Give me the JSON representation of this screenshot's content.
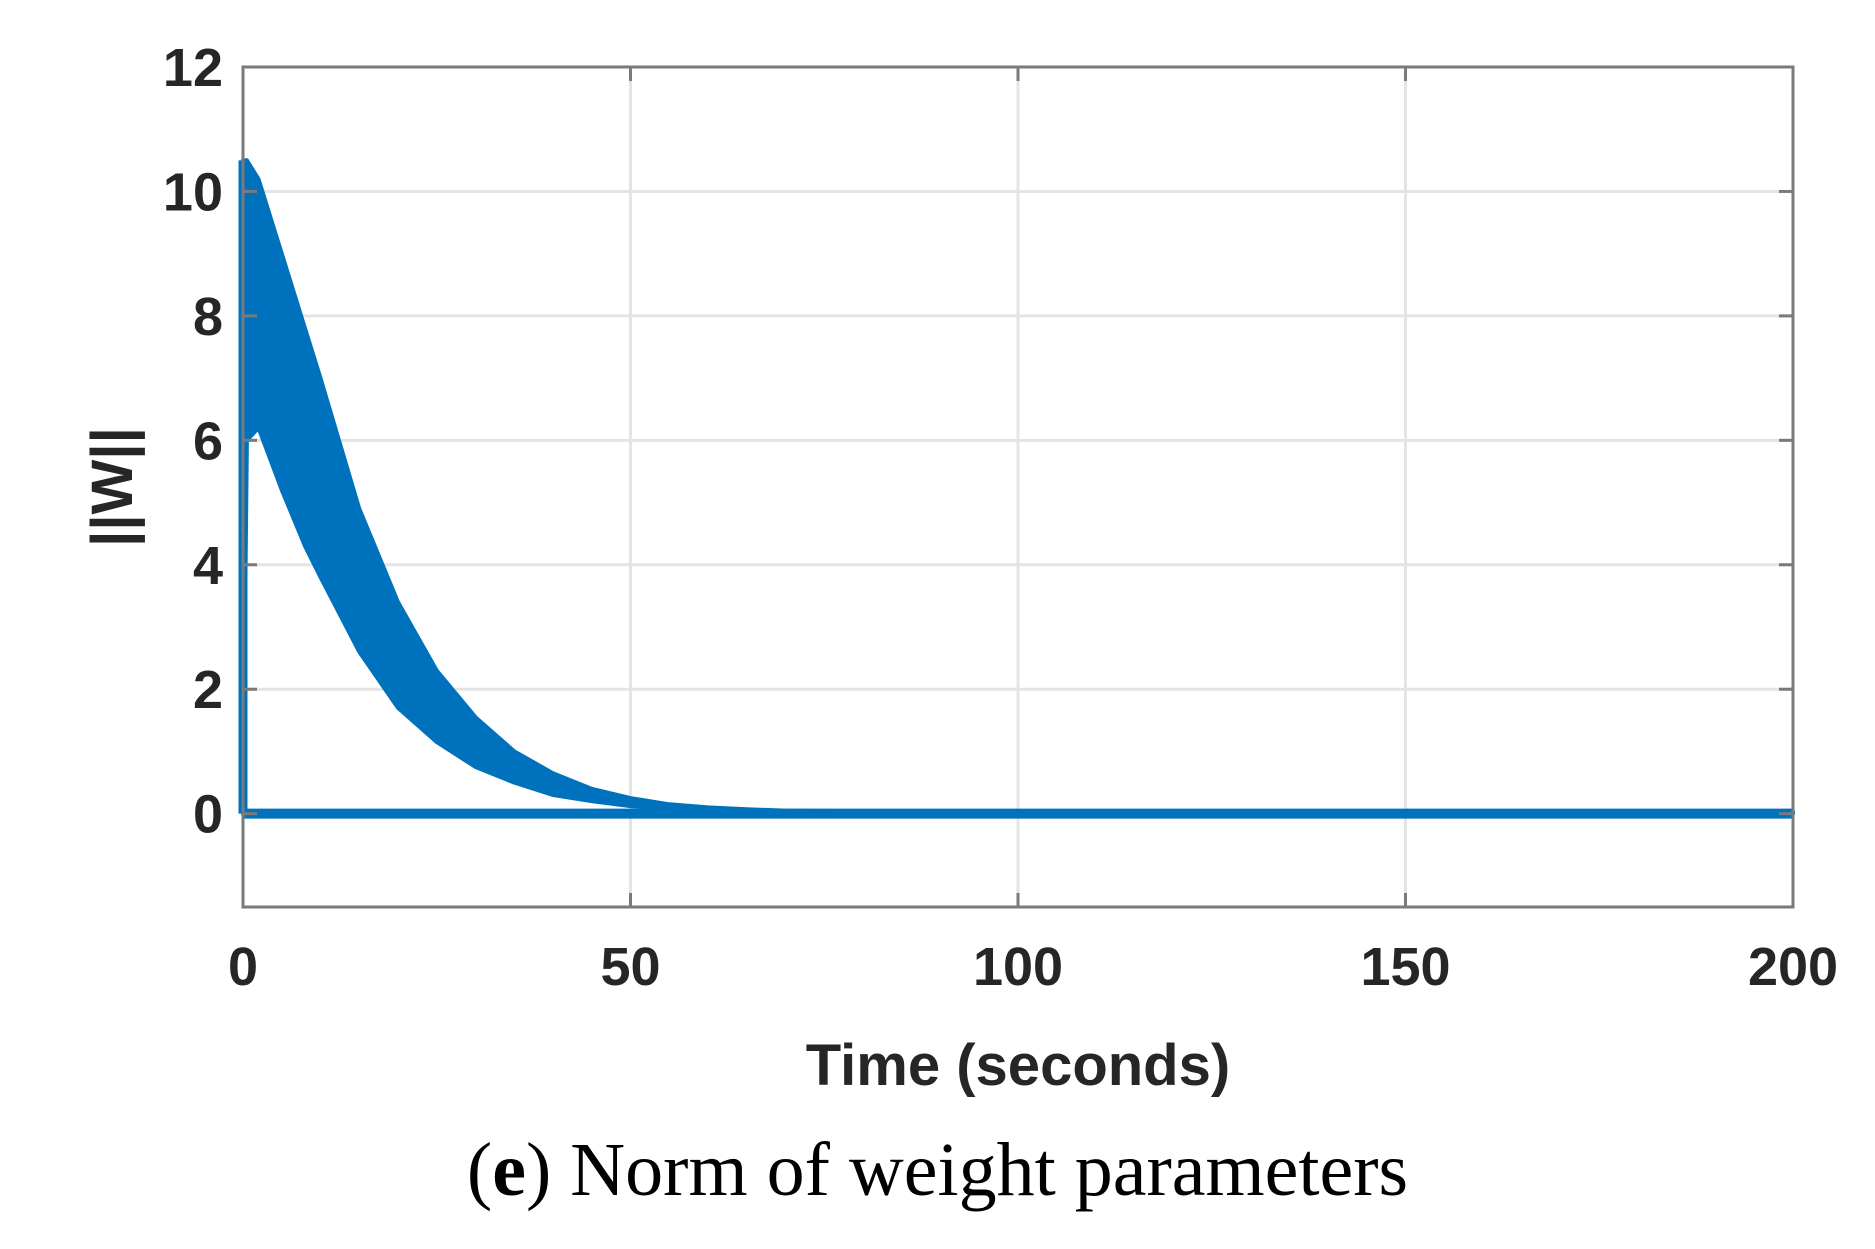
{
  "chart_data": {
    "type": "area",
    "title": "",
    "xlabel": "Time (seconds)",
    "ylabel": "||W||",
    "xlim": [
      0,
      200
    ],
    "ylim": [
      -1.5,
      12
    ],
    "xticks": [
      0,
      50,
      100,
      150,
      200
    ],
    "yticks": [
      0,
      2,
      4,
      6,
      8,
      10,
      12
    ],
    "grid": true,
    "series": [
      {
        "name": "||W||",
        "color": "#0072BD",
        "x": [
          0,
          0.5,
          2,
          5,
          8,
          10,
          15,
          20,
          25,
          30,
          35,
          40,
          45,
          50,
          55,
          60,
          65,
          70,
          80,
          100,
          150,
          200
        ],
        "upper": [
          10.5,
          10.5,
          10.2,
          9.0,
          7.8,
          7.0,
          4.9,
          3.4,
          2.3,
          1.55,
          1.0,
          0.65,
          0.4,
          0.25,
          0.15,
          0.1,
          0.07,
          0.05,
          0.04,
          0.03,
          0.03,
          0.03
        ],
        "lower": [
          0,
          6.0,
          6.2,
          5.2,
          4.3,
          3.8,
          2.6,
          1.7,
          1.15,
          0.75,
          0.5,
          0.3,
          0.2,
          0.12,
          0.08,
          0.05,
          0.03,
          0.02,
          0.0,
          0.0,
          0.0,
          0.0
        ]
      }
    ]
  },
  "caption": {
    "open_paren": "(",
    "letter": "e",
    "text": ") Norm of weight parameters"
  }
}
